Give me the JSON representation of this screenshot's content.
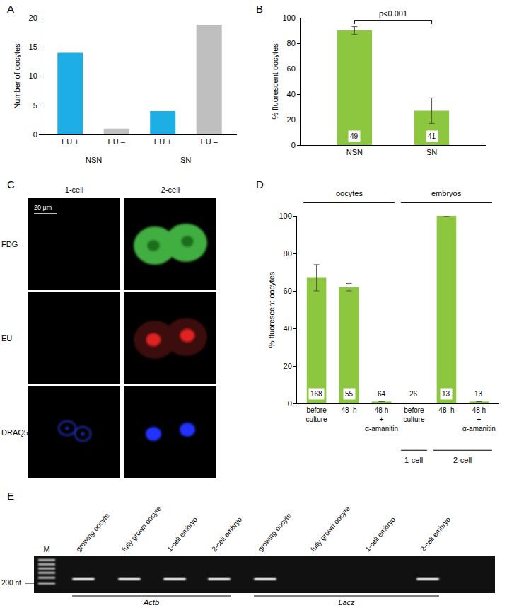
{
  "chart_data": [
    {
      "panel": "A",
      "type": "bar",
      "y_label": "Number of oocytes",
      "categories": [
        "EU +",
        "EU –",
        "EU +",
        "EU –"
      ],
      "groups": [
        "NSN",
        "NSN",
        "SN",
        "SN"
      ],
      "values": [
        14,
        1,
        4,
        18.8
      ],
      "colors": [
        "#1eaee6",
        "#bfbfbf",
        "#1eaee6",
        "#bfbfbf"
      ],
      "ylim": [
        0,
        20
      ],
      "yticks": [
        0,
        5,
        10,
        15,
        20
      ],
      "grid": false
    },
    {
      "panel": "B",
      "type": "bar",
      "y_label": "% fluorescent oocytes",
      "categories": [
        "NSN",
        "SN"
      ],
      "values": [
        90,
        27
      ],
      "errors": [
        3,
        10
      ],
      "n": [
        49,
        41
      ],
      "color": "#8dc63f",
      "annotation": "p<0.001",
      "ylim": [
        0,
        100
      ],
      "yticks": [
        0,
        20,
        40,
        60,
        80,
        100
      ],
      "grid": false
    },
    {
      "panel": "D",
      "type": "bar",
      "y_label": "% fluorescent oocytes",
      "categories": [
        "before\nculture",
        "48–h",
        "48 h\n+\nα-amanitin",
        "before\nculture",
        "48–h",
        "48 h\n+\nα-amanitin"
      ],
      "groups": [
        "oocytes",
        "oocytes",
        "oocytes",
        "embryos",
        "embryos",
        "embryos"
      ],
      "subgroups": [
        null,
        null,
        null,
        "1-cell",
        "2-cell",
        "2-cell"
      ],
      "values": [
        67,
        62,
        1,
        0,
        100,
        1
      ],
      "errors": [
        7,
        2,
        null,
        null,
        null,
        null
      ],
      "n": [
        168,
        55,
        64,
        26,
        13,
        13
      ],
      "color": "#8dc63f",
      "ylim": [
        0,
        100
      ],
      "yticks": [
        0,
        20,
        40,
        60,
        80,
        100
      ],
      "grid": false
    }
  ],
  "image_panels": {
    "C": {
      "panel": "C",
      "columns": [
        "1-cell",
        "2-cell"
      ],
      "rows": [
        "FDG",
        "EU",
        "DRAQ5"
      ],
      "scale_bar": "20 μm"
    },
    "E": {
      "panel": "E",
      "marker_lane": "M",
      "size_label": "200 nt",
      "groups": [
        {
          "name": "Actb",
          "lanes": [
            "growing oocyte",
            "fully grown oocyte",
            "1-cell embryo",
            "2-cell embryo"
          ],
          "bands": [
            true,
            true,
            true,
            true
          ]
        },
        {
          "name": "Lacz",
          "lanes": [
            "growing oocyte",
            "fully grown oocyte",
            "1-cell embryo",
            "2-cell embryo"
          ],
          "bands": [
            true,
            false,
            false,
            true
          ]
        }
      ]
    }
  }
}
